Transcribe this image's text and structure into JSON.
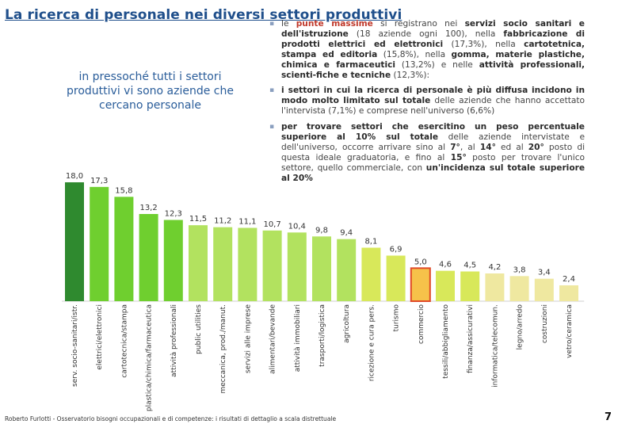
{
  "header": {
    "title": "La ricerca di personale nei diversi settori produttivi"
  },
  "subtitle": "in pressoché tutti i settori produttivi vi sono aziende che cercano personale",
  "bullets": {
    "b1": {
      "p1": "le ",
      "h1": "punte massime",
      "p2": " si registrano nei ",
      "s1": "servizi socio sanitari e dell'istruzione",
      "p3": " (18 aziende ogni 100), nella ",
      "s2": "fabbricazione di prodotti elettrici ed elettronici",
      "p4": " (17,3%), nella ",
      "s3": "cartotetnica, stampa ed editoria",
      "p5": " (15,8%), nella ",
      "s4": "gomma, materie plastiche, chimica e farmaceutici",
      "p6": " (13,2%) e nelle ",
      "s5": "attività professionali, scienti-fiche e tecniche",
      "p7": " (12,3%):"
    },
    "b2": {
      "s1": "i settori in cui la ricerca di personale è più diffusa",
      "p1": " ",
      "s2": "incidono in modo molto limitato sul totale",
      "p2": " delle aziende che hanno accettato l'intervista (7,1%) e comprese nell'universo (6,6%)"
    },
    "b3": {
      "s1": "per trovare settori che esercitino un peso percentuale superiore al 10% sul totale",
      "p1": " delle aziende intervistate e dell'universo, occorre arrivare sino al ",
      "s2": "7°",
      "p2": ", al ",
      "s3": "14°",
      "p3": " ed al ",
      "s4": "20°",
      "p4": " posto di questa ideale graduatoria, e fino al ",
      "s5": "15°",
      "p5": " posto per trovare l'unico settore, quello commerciale, con ",
      "s6": "un'incidenza sul totale superiore al 20%"
    }
  },
  "chart_data": {
    "type": "bar",
    "title": "",
    "xlabel": "",
    "ylabel": "",
    "ylim": [
      0,
      18
    ],
    "grid": false,
    "categories": [
      "serv. socio-sanitari/istr.",
      "elettrici/elettronici",
      "cartotecnica/stampa",
      "plastica/chimica/farmaceutica",
      "attività professionali",
      "public utilities",
      "meccanica, prod./manut.",
      "servizi alle imprese",
      "alimentari/bevande",
      "attività immobiliari",
      "trasporti/logistica",
      "agricoltura",
      "ricezione e cura pers.",
      "turismo",
      "commercio",
      "tessili/abbigliamento",
      "finanza/assicurativi",
      "informatica/telecomun.",
      "legno/arredo",
      "costruzioni",
      "vetro/ceramica"
    ],
    "values": [
      18.0,
      17.3,
      15.8,
      13.2,
      12.3,
      11.5,
      11.2,
      11.1,
      10.7,
      10.4,
      9.8,
      9.4,
      8.1,
      6.9,
      5.0,
      4.6,
      4.5,
      4.2,
      3.8,
      3.4,
      2.4
    ],
    "labels": [
      "18,0",
      "17,3",
      "15,8",
      "13,2",
      "12,3",
      "11,5",
      "11,2",
      "11,1",
      "10,7",
      "10,4",
      "9,8",
      "9,4",
      "8,1",
      "6,9",
      "5,0",
      "4,6",
      "4,5",
      "4,2",
      "3,8",
      "3,4",
      "2,4"
    ],
    "highlighted_index": 14,
    "colors": {
      "top": "#2f8a2f",
      "green_mid": "#6fcf2f",
      "green_light": "#b2e25f",
      "yellow": "#d8e85a",
      "pale": "#efe8a0",
      "highlight_fill": "#f6c24a",
      "highlight_stroke": "#e04a28",
      "label": "#333333"
    }
  },
  "footer": {
    "text": "Roberto Furlotti - Osservatorio bisogni occupazionali e di competenze: i risultati di dettaglio a scala distrettuale",
    "page": "7"
  }
}
